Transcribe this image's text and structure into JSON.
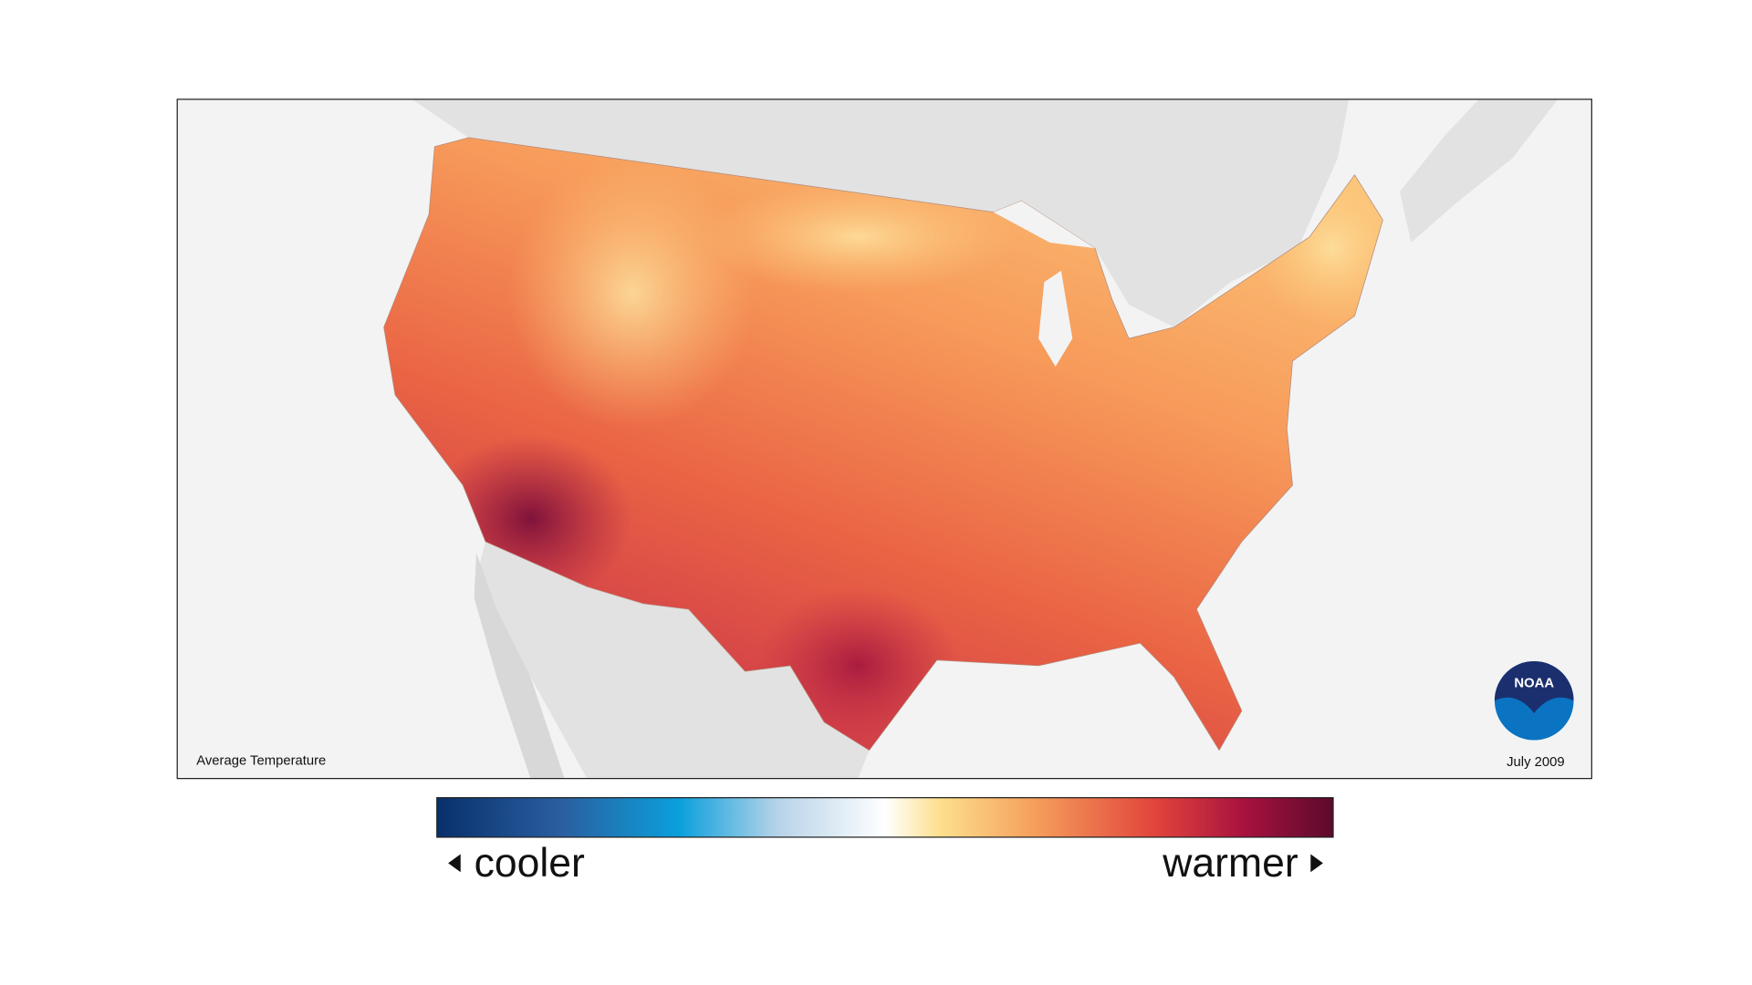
{
  "map": {
    "caption": "Average Temperature",
    "date": "July 2009",
    "logo": "NOAA"
  },
  "legend": {
    "low_label": "cooler",
    "high_label": "warmer"
  }
}
